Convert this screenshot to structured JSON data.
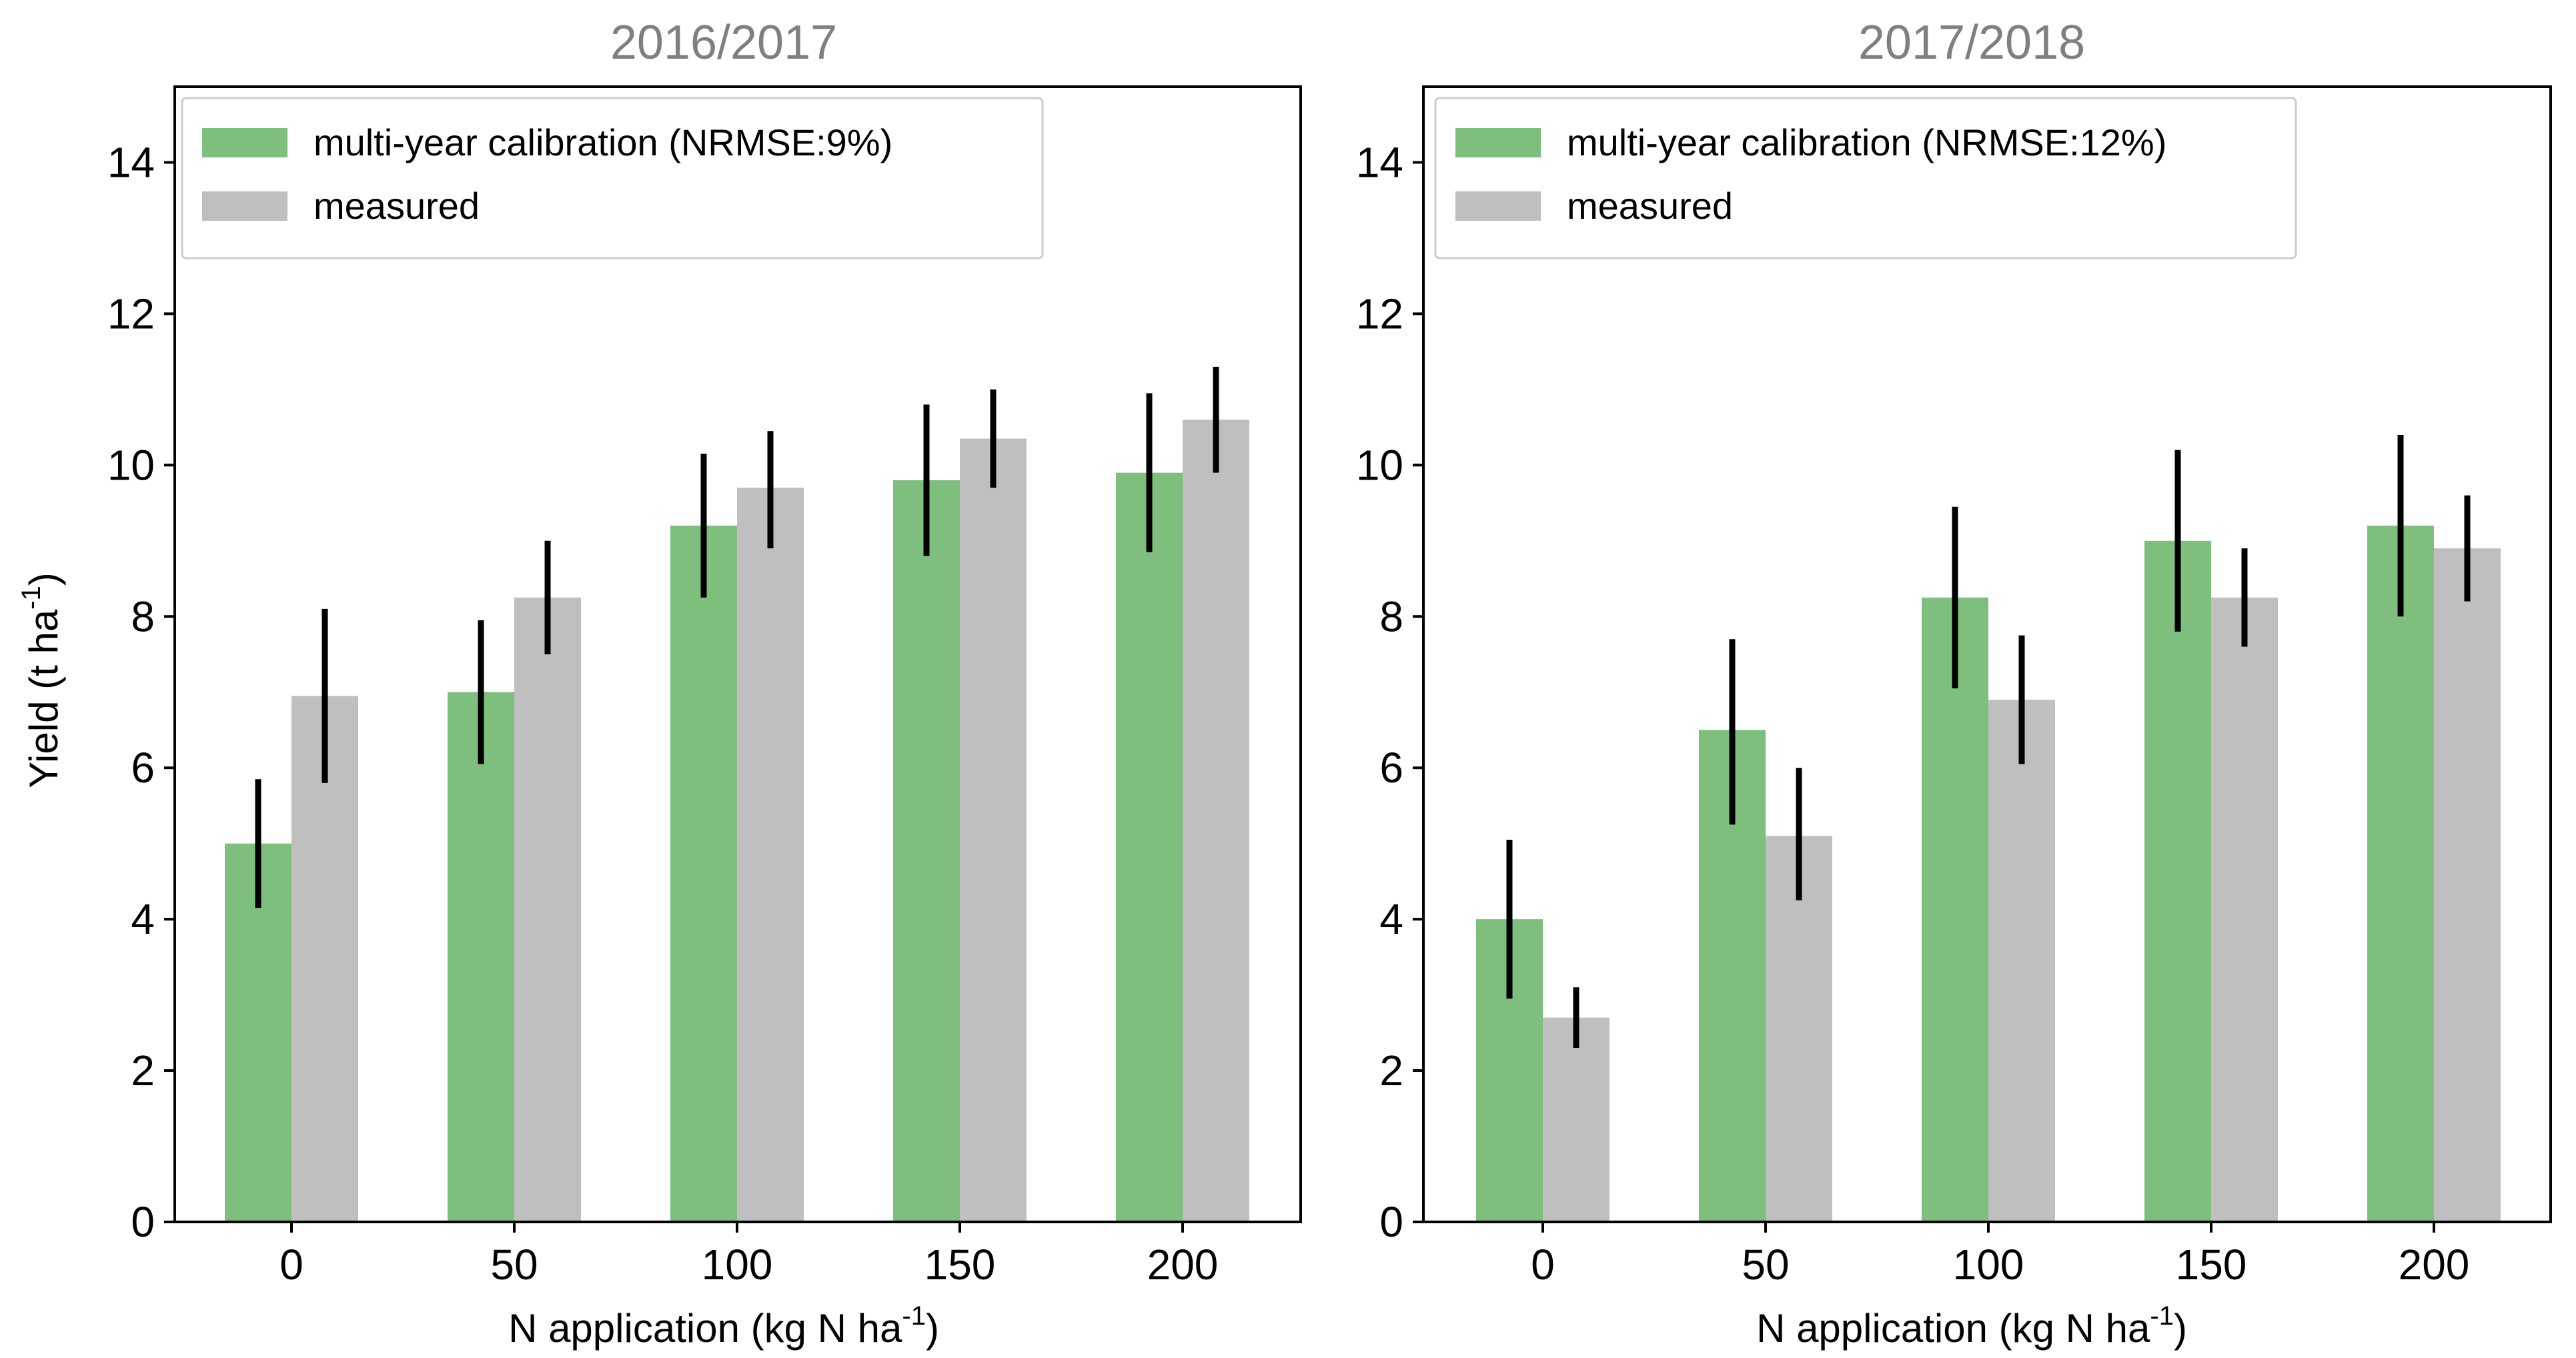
{
  "figure": {
    "ylabel": "Yield (t ha",
    "ylabel_sup": "-1",
    "ylabel_end": ")",
    "xlabel": "N application (kg N ha",
    "xlabel_sup": "-1",
    "xlabel_end": ")"
  },
  "colors": {
    "simulated": "#7ebf7e",
    "measured": "#bfbfbf",
    "error_bar": "#000000",
    "title": "#7f7f7f"
  },
  "chart_data": [
    {
      "type": "bar",
      "title": "2016/2017",
      "categories": [
        "0",
        "50",
        "100",
        "150",
        "200"
      ],
      "ylim": [
        0,
        15
      ],
      "yticks": [
        "0",
        "2",
        "4",
        "6",
        "8",
        "10",
        "12",
        "14"
      ],
      "legend_position": "upper-left",
      "series": [
        {
          "name": "multi-year calibration (NRMSE:9%)",
          "color_key": "simulated",
          "values": [
            5.0,
            7.0,
            9.2,
            9.8,
            9.9
          ],
          "error_low": [
            4.15,
            6.05,
            8.25,
            8.8,
            8.85
          ],
          "error_high": [
            5.85,
            7.95,
            10.15,
            10.8,
            10.95
          ]
        },
        {
          "name": "measured",
          "color_key": "measured",
          "values": [
            6.95,
            8.25,
            9.7,
            10.35,
            10.6
          ],
          "error_low": [
            5.8,
            7.5,
            8.9,
            9.7,
            9.9
          ],
          "error_high": [
            8.1,
            9.0,
            10.45,
            11.0,
            11.3
          ]
        }
      ]
    },
    {
      "type": "bar",
      "title": "2017/2018",
      "categories": [
        "0",
        "50",
        "100",
        "150",
        "200"
      ],
      "ylim": [
        0,
        15
      ],
      "yticks": [
        "0",
        "2",
        "4",
        "6",
        "8",
        "10",
        "12",
        "14"
      ],
      "legend_position": "upper-left",
      "series": [
        {
          "name": "multi-year calibration (NRMSE:12%)",
          "color_key": "simulated",
          "values": [
            4.0,
            6.5,
            8.25,
            9.0,
            9.2
          ],
          "error_low": [
            2.95,
            5.25,
            7.05,
            7.8,
            8.0
          ],
          "error_high": [
            5.05,
            7.7,
            9.45,
            10.2,
            10.4
          ]
        },
        {
          "name": "measured",
          "color_key": "measured",
          "values": [
            2.7,
            5.1,
            6.9,
            8.25,
            8.9
          ],
          "error_low": [
            2.3,
            4.25,
            6.05,
            7.6,
            8.2
          ],
          "error_high": [
            3.1,
            6.0,
            7.75,
            8.9,
            9.6
          ]
        }
      ]
    }
  ]
}
